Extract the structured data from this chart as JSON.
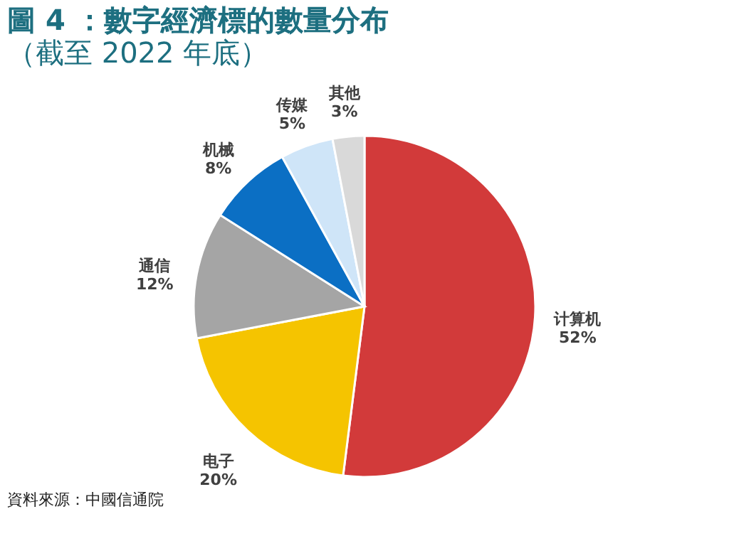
{
  "chart_data": {
    "type": "pie",
    "title": "圖 4 ：數字經濟標的數量分布",
    "subtitle": "（截至 2022 年底）",
    "categories": [
      "计算机",
      "电子",
      "通信",
      "机械",
      "传媒",
      "其他"
    ],
    "values": [
      52,
      20,
      12,
      8,
      5,
      3
    ],
    "value_labels": [
      "52%",
      "20%",
      "12%",
      "8%",
      "5%",
      "3%"
    ],
    "colors": [
      "#d23a3a",
      "#f5c400",
      "#a5a5a5",
      "#0b6fc4",
      "#cfe5f8",
      "#d9d9d9"
    ],
    "annotations": [
      "資料來源：中國信通院"
    ],
    "legend": false
  }
}
